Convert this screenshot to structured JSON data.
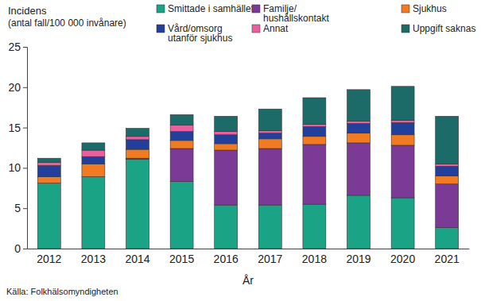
{
  "chart_data": {
    "type": "bar",
    "stacked": true,
    "grid": false,
    "ylabel": [
      "Incidens",
      "(antal fall/100 000 invånare)"
    ],
    "xlabel": "År",
    "source": "Källa: Folkhälsomyndigheten",
    "categories": [
      "2012",
      "2013",
      "2014",
      "2015",
      "2016",
      "2017",
      "2018",
      "2019",
      "2020",
      "2021"
    ],
    "series": [
      {
        "name": "Smittade i samhället",
        "color": "#1aa385",
        "values": [
          8.1,
          8.9,
          11.1,
          8.3,
          5.4,
          5.4,
          5.5,
          6.6,
          6.3,
          2.6
        ]
      },
      {
        "name": "Familje/hushållskontakt",
        "color": "#7b3a96",
        "values": [
          0,
          0,
          0.1,
          4.1,
          6.8,
          7.0,
          7.4,
          6.5,
          6.5,
          5.4
        ]
      },
      {
        "name": "Sjukhus",
        "color": "#f07b22",
        "values": [
          0.8,
          1.6,
          1.1,
          1.0,
          0.8,
          1.2,
          1.0,
          1.2,
          1.3,
          1.0
        ]
      },
      {
        "name": "Vård/omsorg utanför sjukhus",
        "color": "#233f9c",
        "values": [
          1.4,
          0.9,
          1.2,
          1.1,
          1.1,
          0.7,
          1.2,
          1.2,
          1.5,
          1.2
        ]
      },
      {
        "name": "Annat",
        "color": "#e8609e",
        "values": [
          0.4,
          0.8,
          0.4,
          0.8,
          0.4,
          0.3,
          0.3,
          0.3,
          0.3,
          0.3
        ]
      },
      {
        "name": "Uppgift saknas",
        "color": "#1d6b68",
        "values": [
          0.5,
          0.9,
          1.0,
          1.3,
          1.9,
          2.7,
          3.3,
          3.9,
          4.2,
          5.9
        ]
      }
    ],
    "ylim": [
      0,
      25
    ],
    "yticks": [
      0,
      5,
      10,
      15,
      20,
      25
    ],
    "legend": "top"
  }
}
